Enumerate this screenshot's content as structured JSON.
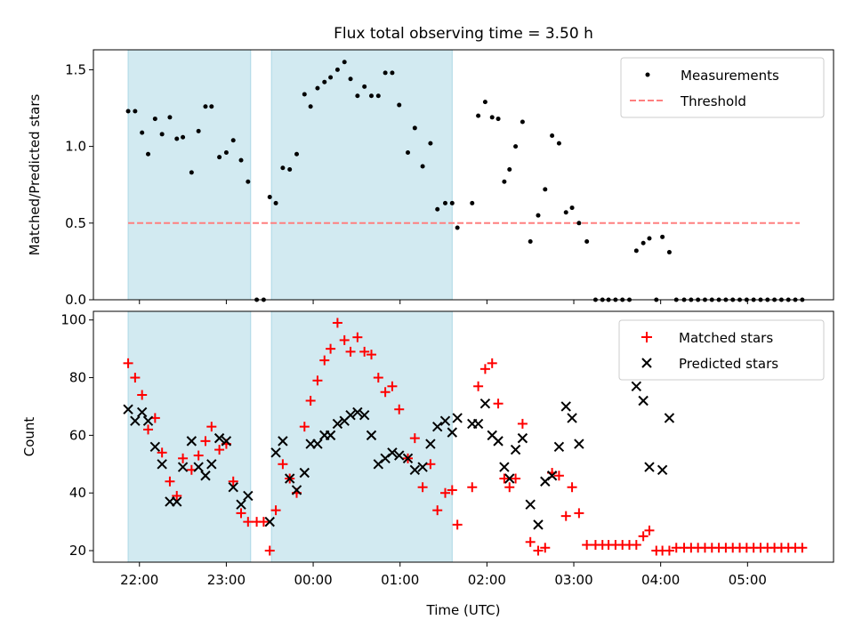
{
  "title": "Flux total observing time = 3.50 h",
  "xlabel": "Time (UTC)",
  "xticks": [
    {
      "v": 22.0,
      "label": "22:00"
    },
    {
      "v": 23.0,
      "label": "23:00"
    },
    {
      "v": 24.0,
      "label": "00:00"
    },
    {
      "v": 25.0,
      "label": "01:00"
    },
    {
      "v": 26.0,
      "label": "02:00"
    },
    {
      "v": 27.0,
      "label": "03:00"
    },
    {
      "v": 28.0,
      "label": "04:00"
    },
    {
      "v": 29.0,
      "label": "05:00"
    }
  ],
  "xlim": [
    21.47,
    29.99
  ],
  "shaded_spans": [
    [
      21.87,
      23.28
    ],
    [
      23.52,
      25.6
    ]
  ],
  "colors": {
    "span": "#add8e6",
    "threshold": "#ff7f7f",
    "matched": "#ff0000",
    "predicted": "#000000",
    "measure": "#000000"
  },
  "chart_data": [
    {
      "type": "scatter",
      "ylabel": "Matched/Predicted stars",
      "ylim": [
        0,
        1.63
      ],
      "yticks": [
        0.0,
        0.5,
        1.0,
        1.5
      ],
      "legend": {
        "position": "top-right",
        "measurements": "Measurements",
        "threshold": "Threshold"
      },
      "threshold": {
        "value": 0.5,
        "x_range": [
          21.87,
          29.6
        ]
      },
      "x": [
        21.87,
        21.95,
        22.03,
        22.1,
        22.18,
        22.26,
        22.35,
        22.43,
        22.5,
        22.6,
        22.68,
        22.76,
        22.83,
        22.92,
        23.0,
        23.08,
        23.17,
        23.25,
        23.35,
        23.43,
        23.5,
        23.57,
        23.65,
        23.73,
        23.81,
        23.9,
        23.97,
        24.05,
        24.13,
        24.2,
        24.28,
        24.36,
        24.43,
        24.51,
        24.59,
        24.67,
        24.75,
        24.83,
        24.91,
        24.99,
        25.09,
        25.17,
        25.26,
        25.35,
        25.43,
        25.52,
        25.6,
        25.66,
        25.83,
        25.9,
        25.98,
        26.06,
        26.13,
        26.2,
        26.26,
        26.33,
        26.41,
        26.5,
        26.59,
        26.67,
        26.75,
        26.83,
        26.91,
        26.98,
        27.06,
        27.15,
        27.25,
        27.33,
        27.4,
        27.48,
        27.56,
        27.64,
        27.72,
        27.8,
        27.87,
        27.95,
        28.02,
        28.1,
        28.18,
        28.27,
        28.35,
        28.43,
        28.51,
        28.59,
        28.67,
        28.75,
        28.83,
        28.91,
        28.99,
        29.07,
        29.15,
        29.23,
        29.31,
        29.39,
        29.47,
        29.55,
        29.63
      ],
      "y": [
        1.23,
        1.23,
        1.09,
        0.95,
        1.18,
        1.08,
        1.19,
        1.05,
        1.06,
        0.83,
        1.1,
        1.26,
        1.26,
        0.93,
        0.96,
        1.04,
        0.91,
        0.77,
        0.0,
        0.0,
        0.67,
        0.63,
        0.86,
        0.85,
        0.95,
        1.34,
        1.26,
        1.38,
        1.42,
        1.45,
        1.5,
        1.55,
        1.44,
        1.33,
        1.39,
        1.33,
        1.33,
        1.48,
        1.48,
        1.27,
        0.96,
        1.12,
        0.87,
        1.02,
        0.59,
        0.63,
        0.63,
        0.47,
        0.63,
        1.2,
        1.29,
        1.19,
        1.18,
        0.77,
        0.85,
        1.0,
        1.16,
        0.38,
        0.55,
        0.72,
        1.07,
        1.02,
        0.57,
        0.6,
        0.5,
        0.38,
        0.0,
        0.0,
        0.0,
        0.0,
        0.0,
        0.0,
        0.32,
        0.37,
        0.4,
        0.0,
        0.41,
        0.31,
        0.0,
        0.0,
        0.0,
        0.0,
        0.0,
        0.0,
        0.0,
        0.0,
        0.0,
        0.0,
        0.0,
        0.0,
        0.0,
        0.0,
        0.0,
        0.0,
        0.0,
        0.0,
        0.0
      ]
    },
    {
      "type": "scatter",
      "ylabel": "Count",
      "ylim": [
        16,
        103
      ],
      "yticks": [
        20,
        40,
        60,
        80,
        100
      ],
      "legend": {
        "position": "top-right",
        "matched": "Matched stars",
        "predicted": "Predicted stars"
      },
      "matched": {
        "x": [
          21.87,
          21.95,
          22.03,
          22.1,
          22.18,
          22.26,
          22.35,
          22.43,
          22.5,
          22.6,
          22.68,
          22.76,
          22.83,
          22.92,
          23.0,
          23.08,
          23.17,
          23.25,
          23.35,
          23.43,
          23.5,
          23.57,
          23.65,
          23.73,
          23.81,
          23.9,
          23.97,
          24.05,
          24.13,
          24.2,
          24.28,
          24.36,
          24.43,
          24.51,
          24.59,
          24.67,
          24.75,
          24.83,
          24.91,
          24.99,
          25.09,
          25.17,
          25.26,
          25.35,
          25.43,
          25.52,
          25.6,
          25.66,
          25.83,
          25.9,
          25.98,
          26.06,
          26.13,
          26.2,
          26.26,
          26.33,
          26.41,
          26.5,
          26.59,
          26.67,
          26.75,
          26.83,
          26.91,
          26.98,
          27.06,
          27.15,
          27.25,
          27.33,
          27.4,
          27.48,
          27.56,
          27.64,
          27.72,
          27.8,
          27.87,
          27.95,
          28.02,
          28.1,
          28.18,
          28.27,
          28.35,
          28.43,
          28.51,
          28.59,
          28.67,
          28.75,
          28.83,
          28.91,
          28.99,
          29.07,
          29.15,
          29.23,
          29.31,
          29.39,
          29.47,
          29.55,
          29.63
        ],
        "y": [
          85,
          80,
          74,
          62,
          66,
          54,
          44,
          39,
          52,
          48,
          53,
          58,
          63,
          55,
          57,
          44,
          33,
          30,
          30,
          30,
          20,
          34,
          50,
          45,
          40,
          63,
          72,
          79,
          86,
          90,
          99,
          93,
          89,
          94,
          89,
          88,
          80,
          75,
          77,
          69,
          52,
          59,
          42,
          50,
          34,
          40,
          41,
          29,
          42,
          77,
          83,
          85,
          71,
          45,
          42,
          45,
          64,
          23,
          20,
          21,
          47,
          46,
          32,
          42,
          33,
          22,
          22,
          22,
          22,
          22,
          22,
          22,
          22,
          25,
          27,
          20,
          20,
          20,
          21,
          21,
          21,
          21,
          21,
          21,
          21,
          21,
          21,
          21,
          21,
          21,
          21,
          21,
          21,
          21,
          21,
          21,
          21
        ]
      },
      "predicted": {
        "x": [
          21.87,
          21.95,
          22.03,
          22.1,
          22.18,
          22.26,
          22.35,
          22.43,
          22.5,
          22.6,
          22.68,
          22.76,
          22.83,
          22.92,
          23.0,
          23.08,
          23.17,
          23.25,
          23.35,
          23.43,
          23.5,
          23.57,
          23.65,
          23.73,
          23.81,
          23.9,
          23.97,
          24.05,
          24.13,
          24.2,
          24.28,
          24.36,
          24.43,
          24.51,
          24.59,
          24.67,
          24.75,
          24.83,
          24.91,
          24.99,
          25.09,
          25.17,
          25.26,
          25.35,
          25.43,
          25.52,
          25.6,
          25.66,
          25.83,
          25.9,
          25.98,
          26.06,
          26.13,
          26.2,
          26.26,
          26.33,
          26.41,
          26.5,
          26.59,
          26.67,
          26.75,
          26.83,
          26.91,
          26.98,
          27.06,
          27.15,
          27.25,
          27.33,
          27.4,
          27.48,
          27.56,
          27.64,
          27.72,
          27.8,
          27.87,
          27.95,
          28.02,
          28.1,
          28.18,
          28.27,
          28.35,
          28.43,
          28.51,
          28.59,
          28.67,
          28.75,
          28.83,
          28.91,
          28.99,
          29.07,
          29.15,
          29.23,
          29.31,
          29.39,
          29.47,
          29.55,
          29.63
        ],
        "y": [
          69,
          65,
          68,
          65,
          56,
          50,
          37,
          37,
          49,
          58,
          49,
          46,
          50,
          59,
          58,
          42,
          36,
          39,
          null,
          null,
          30,
          54,
          58,
          45,
          41,
          47,
          57,
          57,
          60,
          60,
          64,
          65,
          67,
          68,
          67,
          60,
          50,
          52,
          54,
          53,
          52,
          48,
          49,
          57,
          63,
          65,
          61,
          66,
          64,
          64,
          71,
          60,
          58,
          49,
          45,
          55,
          59,
          36,
          29,
          44,
          46,
          56,
          70,
          66,
          57,
          null,
          null,
          null,
          null,
          null,
          null,
          null,
          77,
          72,
          49,
          null,
          48,
          66,
          null,
          null,
          null,
          null,
          null,
          null,
          null,
          null,
          null,
          null,
          null,
          null,
          null,
          null,
          null,
          null,
          null,
          null,
          null
        ]
      }
    }
  ]
}
